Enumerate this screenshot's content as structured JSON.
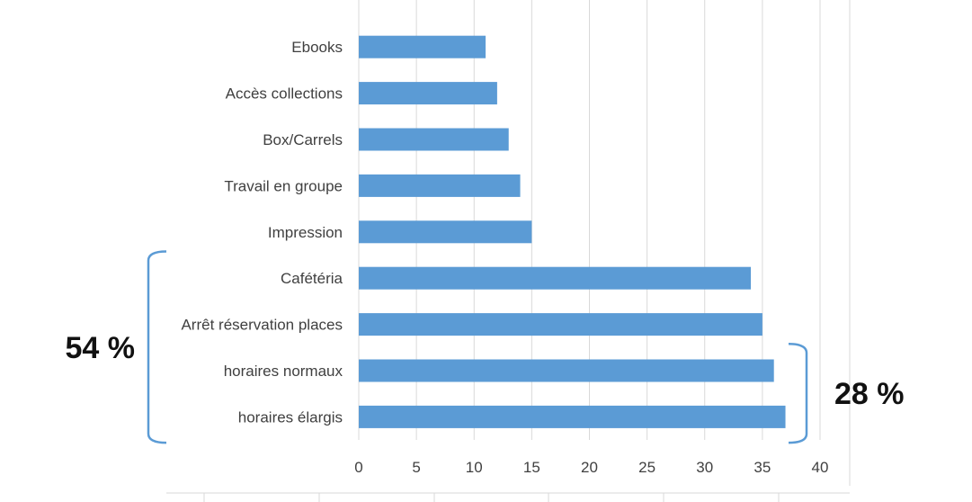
{
  "chart_data": {
    "type": "bar",
    "orientation": "horizontal",
    "categories": [
      "Ebooks",
      "Accès collections",
      "Box/Carrels",
      "Travail en groupe",
      "Impression",
      "Cafétéria",
      "Arrêt réservation places",
      "horaires normaux",
      "horaires élargis"
    ],
    "values": [
      11,
      12,
      13,
      14,
      15,
      34,
      35,
      36,
      37
    ],
    "xlim": [
      0,
      40
    ],
    "xticks": [
      0,
      5,
      10,
      15,
      20,
      25,
      30,
      35,
      40
    ],
    "title": "",
    "xlabel": "",
    "ylabel": "",
    "grid": "vertical",
    "legend": "none",
    "bar_color": "#5b9bd5",
    "annotations": [
      {
        "text": "54 %",
        "from_category": "Cafétéria",
        "to_category": "horaires élargis",
        "side": "left"
      },
      {
        "text": "28 %",
        "from_category": "horaires normaux",
        "to_category": "horaires élargis",
        "side": "right"
      }
    ]
  }
}
